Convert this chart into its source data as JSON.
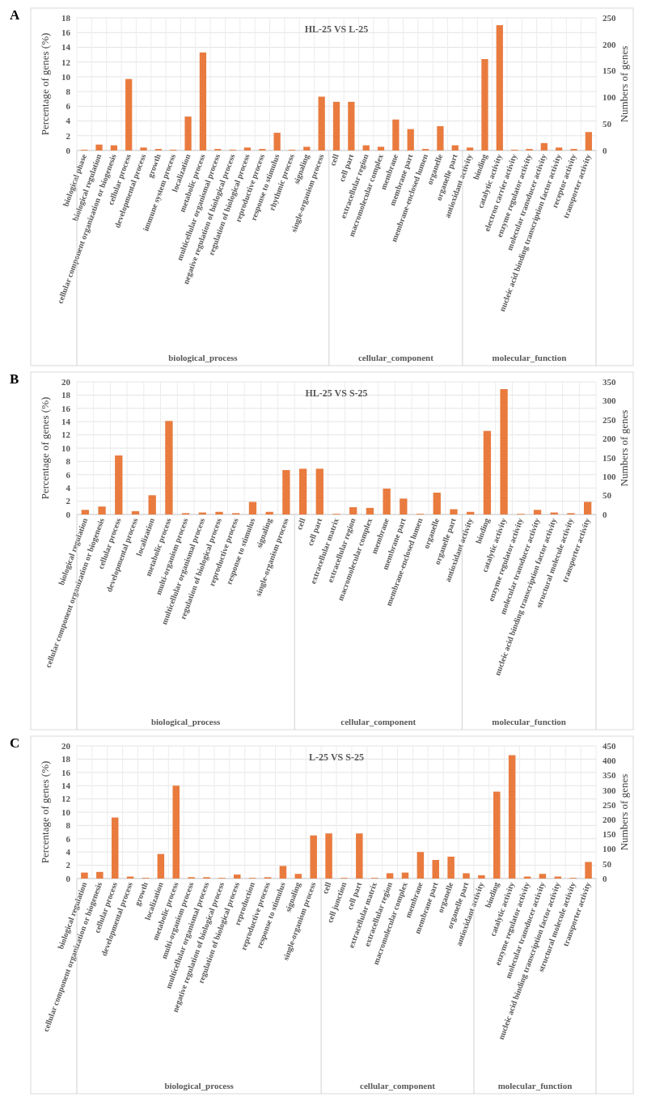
{
  "chart_data": [
    {
      "type": "bar",
      "title": "HL-25 VS L-25",
      "ylabel": "Percentage of genes (%)",
      "y2label": "Numbers of genes",
      "annotations": [
        "A",
        "biological_process",
        "cellular_component",
        "molecular_function"
      ],
      "categories": [
        "biological phase",
        "biological regulation",
        "cellular component organization or biogenesis",
        "cellular process",
        "developmental process",
        "growth",
        "immune system process",
        "localization",
        "metabolic process",
        "multicellular organismal process",
        "negative regulation of biological process",
        "regulation of biological process",
        "reproductive process",
        "response to stimulus",
        "rhythmic process",
        "signaling",
        "single-organism process",
        "cell",
        "cell part",
        "extracellular region",
        "macromolecular complex",
        "membrane",
        "membrane part",
        "membrane-enclosed lumen",
        "organelle",
        "organelle part",
        "antioxidant activity",
        "binding",
        "catalytic activity",
        "electron carrier activity",
        "enzyme regulator activity",
        "molecular transducer activity",
        "nucleic acid binding transcription factor activity",
        "receptor activity",
        "transporter activity"
      ],
      "series": [
        {
          "color": "#e97b3f",
          "values": [
            0.1,
            0.8,
            0.7,
            9.7,
            0.4,
            0.2,
            0.1,
            4.6,
            13.3,
            0.2,
            0.1,
            0.4,
            0.2,
            2.4,
            0.1,
            0.5,
            7.3,
            6.6,
            6.6,
            0.7,
            0.5,
            4.2,
            2.9,
            0.2,
            3.3,
            0.7,
            0.4,
            12.4,
            17.0,
            0.1,
            0.2,
            1.0,
            0.4,
            0.2,
            2.5
          ]
        }
      ],
      "ylim": [
        0,
        18
      ],
      "yticks": [
        0,
        2,
        4,
        6,
        8,
        10,
        12,
        14,
        16,
        18
      ],
      "y2lim": [
        0,
        250
      ],
      "y2ticks": [
        0,
        50,
        100,
        150,
        200,
        250
      ],
      "grid": true
    },
    {
      "type": "bar",
      "title": "HL-25 VS S-25",
      "ylabel": "Percentage of genes (%)",
      "y2label": "Numbers of genes",
      "annotations": [
        "B",
        "biological_process",
        "cellular_component",
        "molecular_function"
      ],
      "categories": [
        "biological regulation",
        "cellular component organization or biogenesis",
        "cellular process",
        "developmental process",
        "localization",
        "metabolic process",
        "multi-organism process",
        "multicellular organismal process",
        "regulation of biological process",
        "reproductive process",
        "response to stimulus",
        "signaling",
        "single-organism process",
        "cell",
        "cell part",
        "extracellular matrix",
        "extracellular region",
        "macromolecular complex",
        "membrane",
        "membrane part",
        "membrane-enclosed lumen",
        "organelle",
        "organelle part",
        "antioxidant activity",
        "binding",
        "catalytic activity",
        "enzyme regulator activity",
        "molecular transducer activity",
        "nucleic acid binding transcription factor activity",
        "structural molecule activity",
        "transporter activity"
      ],
      "series": [
        {
          "color": "#e97b3f",
          "values": [
            0.7,
            1.2,
            8.9,
            0.5,
            2.9,
            14.1,
            0.2,
            0.3,
            0.4,
            0.2,
            1.9,
            0.4,
            6.7,
            6.9,
            6.9,
            0.1,
            1.1,
            1.0,
            3.9,
            2.4,
            0.1,
            3.3,
            0.8,
            0.4,
            12.6,
            18.9,
            0.1,
            0.7,
            0.3,
            0.2,
            1.9
          ]
        }
      ],
      "ylim": [
        0,
        20
      ],
      "yticks": [
        0,
        2,
        4,
        6,
        8,
        10,
        12,
        14,
        16,
        18,
        20
      ],
      "y2lim": [
        0,
        350
      ],
      "y2ticks": [
        0,
        50,
        100,
        150,
        200,
        250,
        300,
        350
      ],
      "grid": true
    },
    {
      "type": "bar",
      "title": "L-25 VS S-25",
      "ylabel": "Percentage of genes (%)",
      "y2label": "Numbers of genes",
      "annotations": [
        "C",
        "biological_process",
        "cellular_component",
        "molecular_function"
      ],
      "categories": [
        "biological regulation",
        "cellular component organization or biogenesis",
        "cellular process",
        "developmental process",
        "growth",
        "localization",
        "metabolic process",
        "multi-organism process",
        "multicellular organismal process",
        "negative regulation of biological process",
        "regulation of biological process",
        "reproduction",
        "reproductive process",
        "response to stimulus",
        "signaling",
        "single-organism process",
        "cell",
        "cell junction",
        "cell part",
        "extracellular matrix",
        "extracellular region",
        "macromolecular complex",
        "membrane",
        "membrane part",
        "organelle",
        "organelle part",
        "antioxidant activity",
        "binding",
        "catalytic activity",
        "enzyme regulator activity",
        "molecular transducer activity",
        "nucleic acid binding transcription factor activity",
        "structural molecule activity",
        "transporter activity"
      ],
      "series": [
        {
          "color": "#e97b3f",
          "values": [
            0.9,
            1.0,
            9.2,
            0.3,
            0.1,
            3.7,
            14.0,
            0.2,
            0.2,
            0.1,
            0.6,
            0.1,
            0.2,
            1.9,
            0.7,
            6.5,
            6.8,
            0.1,
            6.8,
            0.1,
            0.8,
            0.9,
            4.0,
            2.8,
            3.3,
            0.8,
            0.5,
            13.1,
            18.6,
            0.3,
            0.7,
            0.3,
            0.1,
            2.5
          ]
        }
      ],
      "ylim": [
        0,
        20
      ],
      "yticks": [
        0,
        2,
        4,
        6,
        8,
        10,
        12,
        14,
        16,
        18,
        20
      ],
      "y2lim": [
        0,
        450
      ],
      "y2ticks": [
        0,
        50,
        100,
        150,
        200,
        250,
        300,
        350,
        400,
        450
      ],
      "grid": true
    }
  ]
}
